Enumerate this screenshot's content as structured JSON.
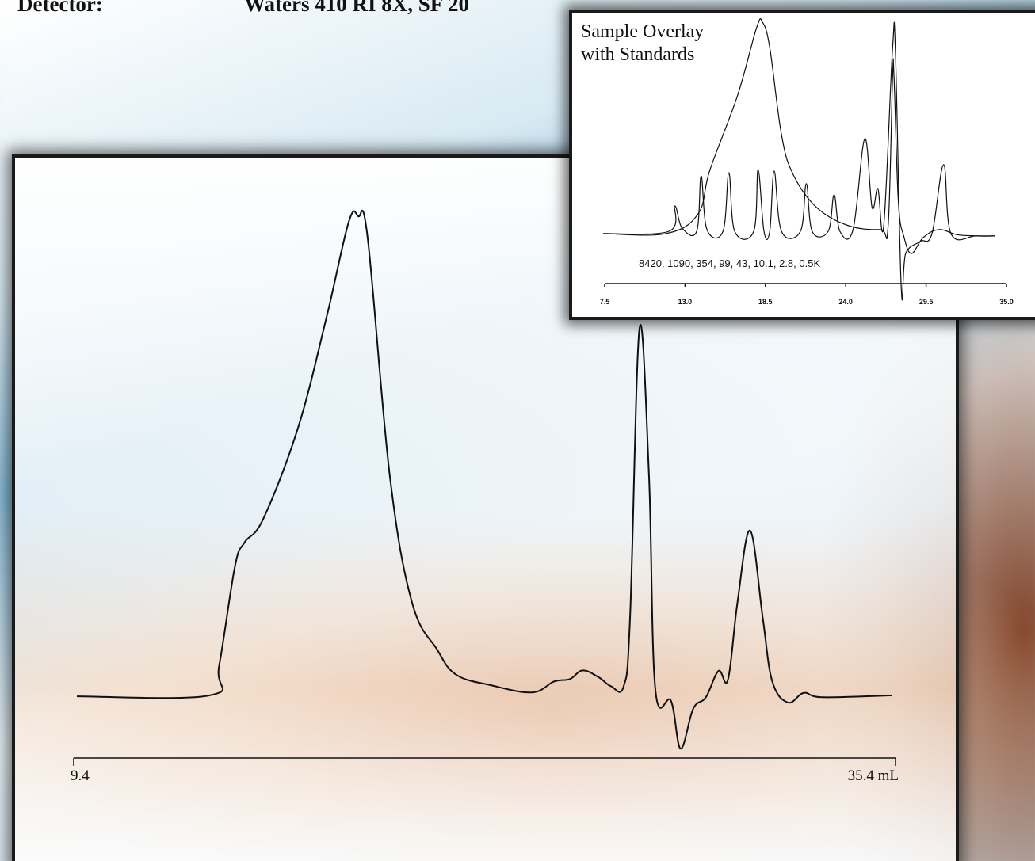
{
  "header": {
    "label": "Detector:",
    "value": "Waters 410 RI 8X, SF 20"
  },
  "chart_data": [
    {
      "type": "line",
      "xlim": [
        9.4,
        35.4
      ],
      "ylim": [
        -15,
        100
      ],
      "xticks": [
        9.4,
        {
          "value": 35.4,
          "label": "35.4 mL"
        }
      ],
      "series": [
        {
          "color": "#111111",
          "x": [
            9.5,
            13.7,
            14.0,
            14.5,
            14.8,
            15.4,
            16.5,
            17.4,
            18.1,
            18.4,
            18.7,
            19.4,
            20.1,
            20.9,
            21.5,
            22.6,
            23.9,
            24.6,
            25.1,
            25.5,
            26.0,
            26.4,
            26.8,
            27.0,
            27.3,
            27.6,
            27.8,
            28.3,
            28.6,
            29.0,
            29.4,
            29.8,
            30.1,
            30.4,
            30.8,
            31.2,
            31.5,
            32.0,
            32.5,
            33.1,
            35.3
          ],
          "values": [
            0,
            0.2,
            6.4,
            27,
            32,
            37,
            56,
            79,
            98.8,
            100,
            95.5,
            46,
            19.6,
            9.7,
            4.5,
            2.3,
            0.8,
            3.1,
            3.6,
            5.4,
            4,
            2.1,
            2.1,
            16.3,
            76.6,
            46,
            1.5,
            -1,
            -10.9,
            -2.6,
            -0.2,
            5.3,
            3.5,
            19.6,
            34.5,
            16.3,
            3.1,
            -1.3,
            0.7,
            -0.2,
            0.2
          ]
        }
      ]
    },
    {
      "type": "line",
      "title": "Sample Overlay with Standards",
      "annotation": "8420, 1090, 354, 99, 43, 10.1, 2.8, 0.5K",
      "xlim": [
        7.5,
        35.0
      ],
      "ylim": [
        -30,
        100
      ],
      "xticks": [
        7.5,
        {
          "value": 13.0,
          "label": "13.0"
        },
        18.5,
        {
          "value": 24.0,
          "label": "24.0"
        },
        29.5,
        {
          "value": 35.0,
          "label": "35.0"
        }
      ],
      "series": [
        {
          "color": "#111111",
          "x": [
            7.4,
            11.7,
            13.9,
            14.7,
            16.6,
            17.9,
            18.3,
            18.8,
            19.6,
            20.4,
            22.0,
            24.2,
            26.4,
            26.9,
            27.2,
            27.3,
            27.6,
            28.0,
            28.5,
            29.3,
            30.4,
            31.8,
            34.2
          ],
          "values": [
            0,
            0,
            9.4,
            30,
            65.5,
            97.4,
            100,
            88,
            46.8,
            28,
            12.4,
            3.7,
            1.9,
            3.7,
            73,
            75,
            15,
            -1.9,
            -9.4,
            -1.9,
            1.9,
            -0.7,
            -1.1
          ]
        },
        {
          "color": "#111111",
          "x": [
            7.4,
            11.9,
            12.3,
            12.8,
            13.8,
            14.1,
            14.5,
            15.6,
            16.0,
            16.4,
            17.7,
            18.0,
            18.4,
            18.8,
            19.1,
            19.6,
            20.9,
            21.3,
            21.7,
            22.8,
            23.2,
            23.6,
            24.5,
            25.3,
            25.8,
            26.2,
            26.6,
            27.2,
            27.4,
            27.8,
            28.1,
            29.1,
            29.9,
            30.7,
            31.2,
            32.9,
            34.2
          ],
          "values": [
            0,
            1.1,
            13.1,
            2.6,
            1.1,
            27.3,
            1.9,
            1.1,
            28.8,
            1.1,
            1.1,
            30.3,
            1.1,
            1.1,
            29.6,
            1.1,
            1.1,
            23.6,
            1.1,
            1.1,
            18.4,
            1.1,
            1.9,
            44.9,
            12.4,
            21.3,
            3.7,
            87.3,
            86.1,
            -26.2,
            -9.4,
            -3.7,
            0,
            32.6,
            0,
            -1.1,
            -1.1
          ]
        }
      ]
    }
  ]
}
